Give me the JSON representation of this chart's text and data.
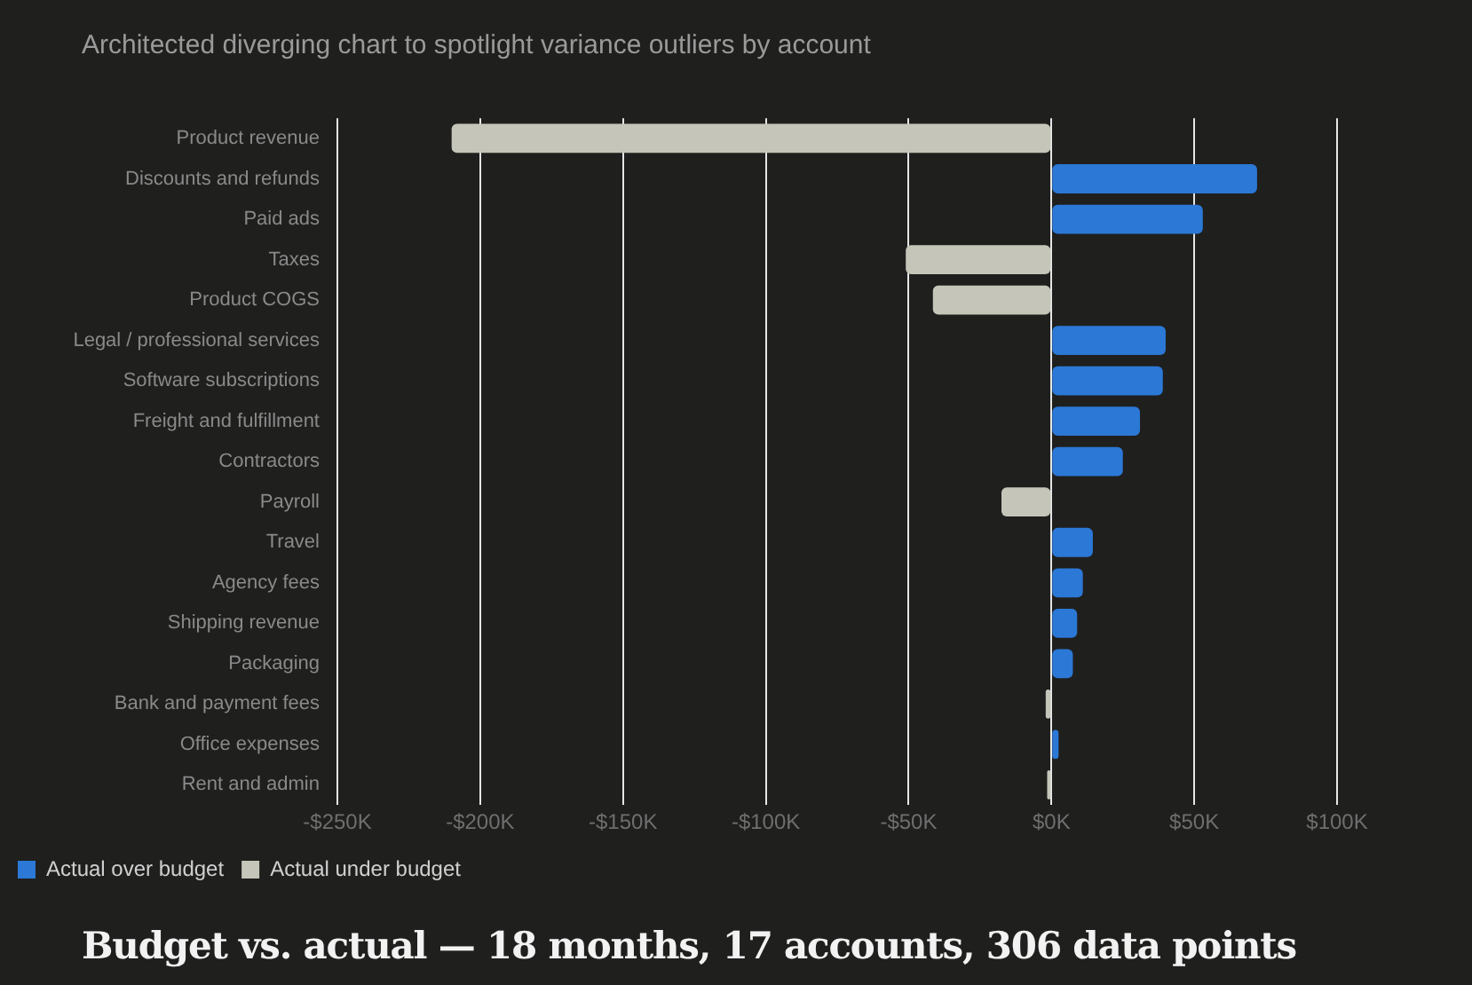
{
  "chart_data": {
    "type": "bar",
    "orientation": "horizontal",
    "subtitle": "Architected diverging chart to spotlight variance outliers by account",
    "title": "Budget vs. actual — 18 months, 17 accounts, 306 data points",
    "categories": [
      "Product revenue",
      "Discounts and refunds",
      "Paid ads",
      "Taxes",
      "Product COGS",
      "Legal / professional services",
      "Software subscriptions",
      "Freight and fulfillment",
      "Contractors",
      "Payroll",
      "Travel",
      "Agency fees",
      "Shipping revenue",
      "Packaging",
      "Bank and payment fees",
      "Office expenses",
      "Rent and admin"
    ],
    "series": [
      {
        "name": "Actual over budget",
        "color": "#2b78d6",
        "values": [
          null,
          72,
          53,
          null,
          null,
          40,
          39,
          31,
          25,
          null,
          14.5,
          11,
          9,
          7.5,
          null,
          2.5,
          null
        ]
      },
      {
        "name": "Actual under budget",
        "color": "#c5c5b9",
        "values": [
          -210,
          null,
          null,
          -51,
          -41.5,
          null,
          null,
          null,
          null,
          -17.5,
          null,
          null,
          null,
          null,
          -2,
          null,
          -1.5
        ]
      }
    ],
    "xlim": [
      -250,
      100
    ],
    "xticks": [
      {
        "value": -250,
        "label": "-$250K"
      },
      {
        "value": -200,
        "label": "-$200K"
      },
      {
        "value": -150,
        "label": "-$150K"
      },
      {
        "value": -100,
        "label": "-$100K"
      },
      {
        "value": -50,
        "label": "-$50K"
      },
      {
        "value": 0,
        "label": "$0K"
      },
      {
        "value": 50,
        "label": "$50K"
      },
      {
        "value": 100,
        "label": "$100K"
      }
    ],
    "grid": "x",
    "legend": "bottom left"
  }
}
